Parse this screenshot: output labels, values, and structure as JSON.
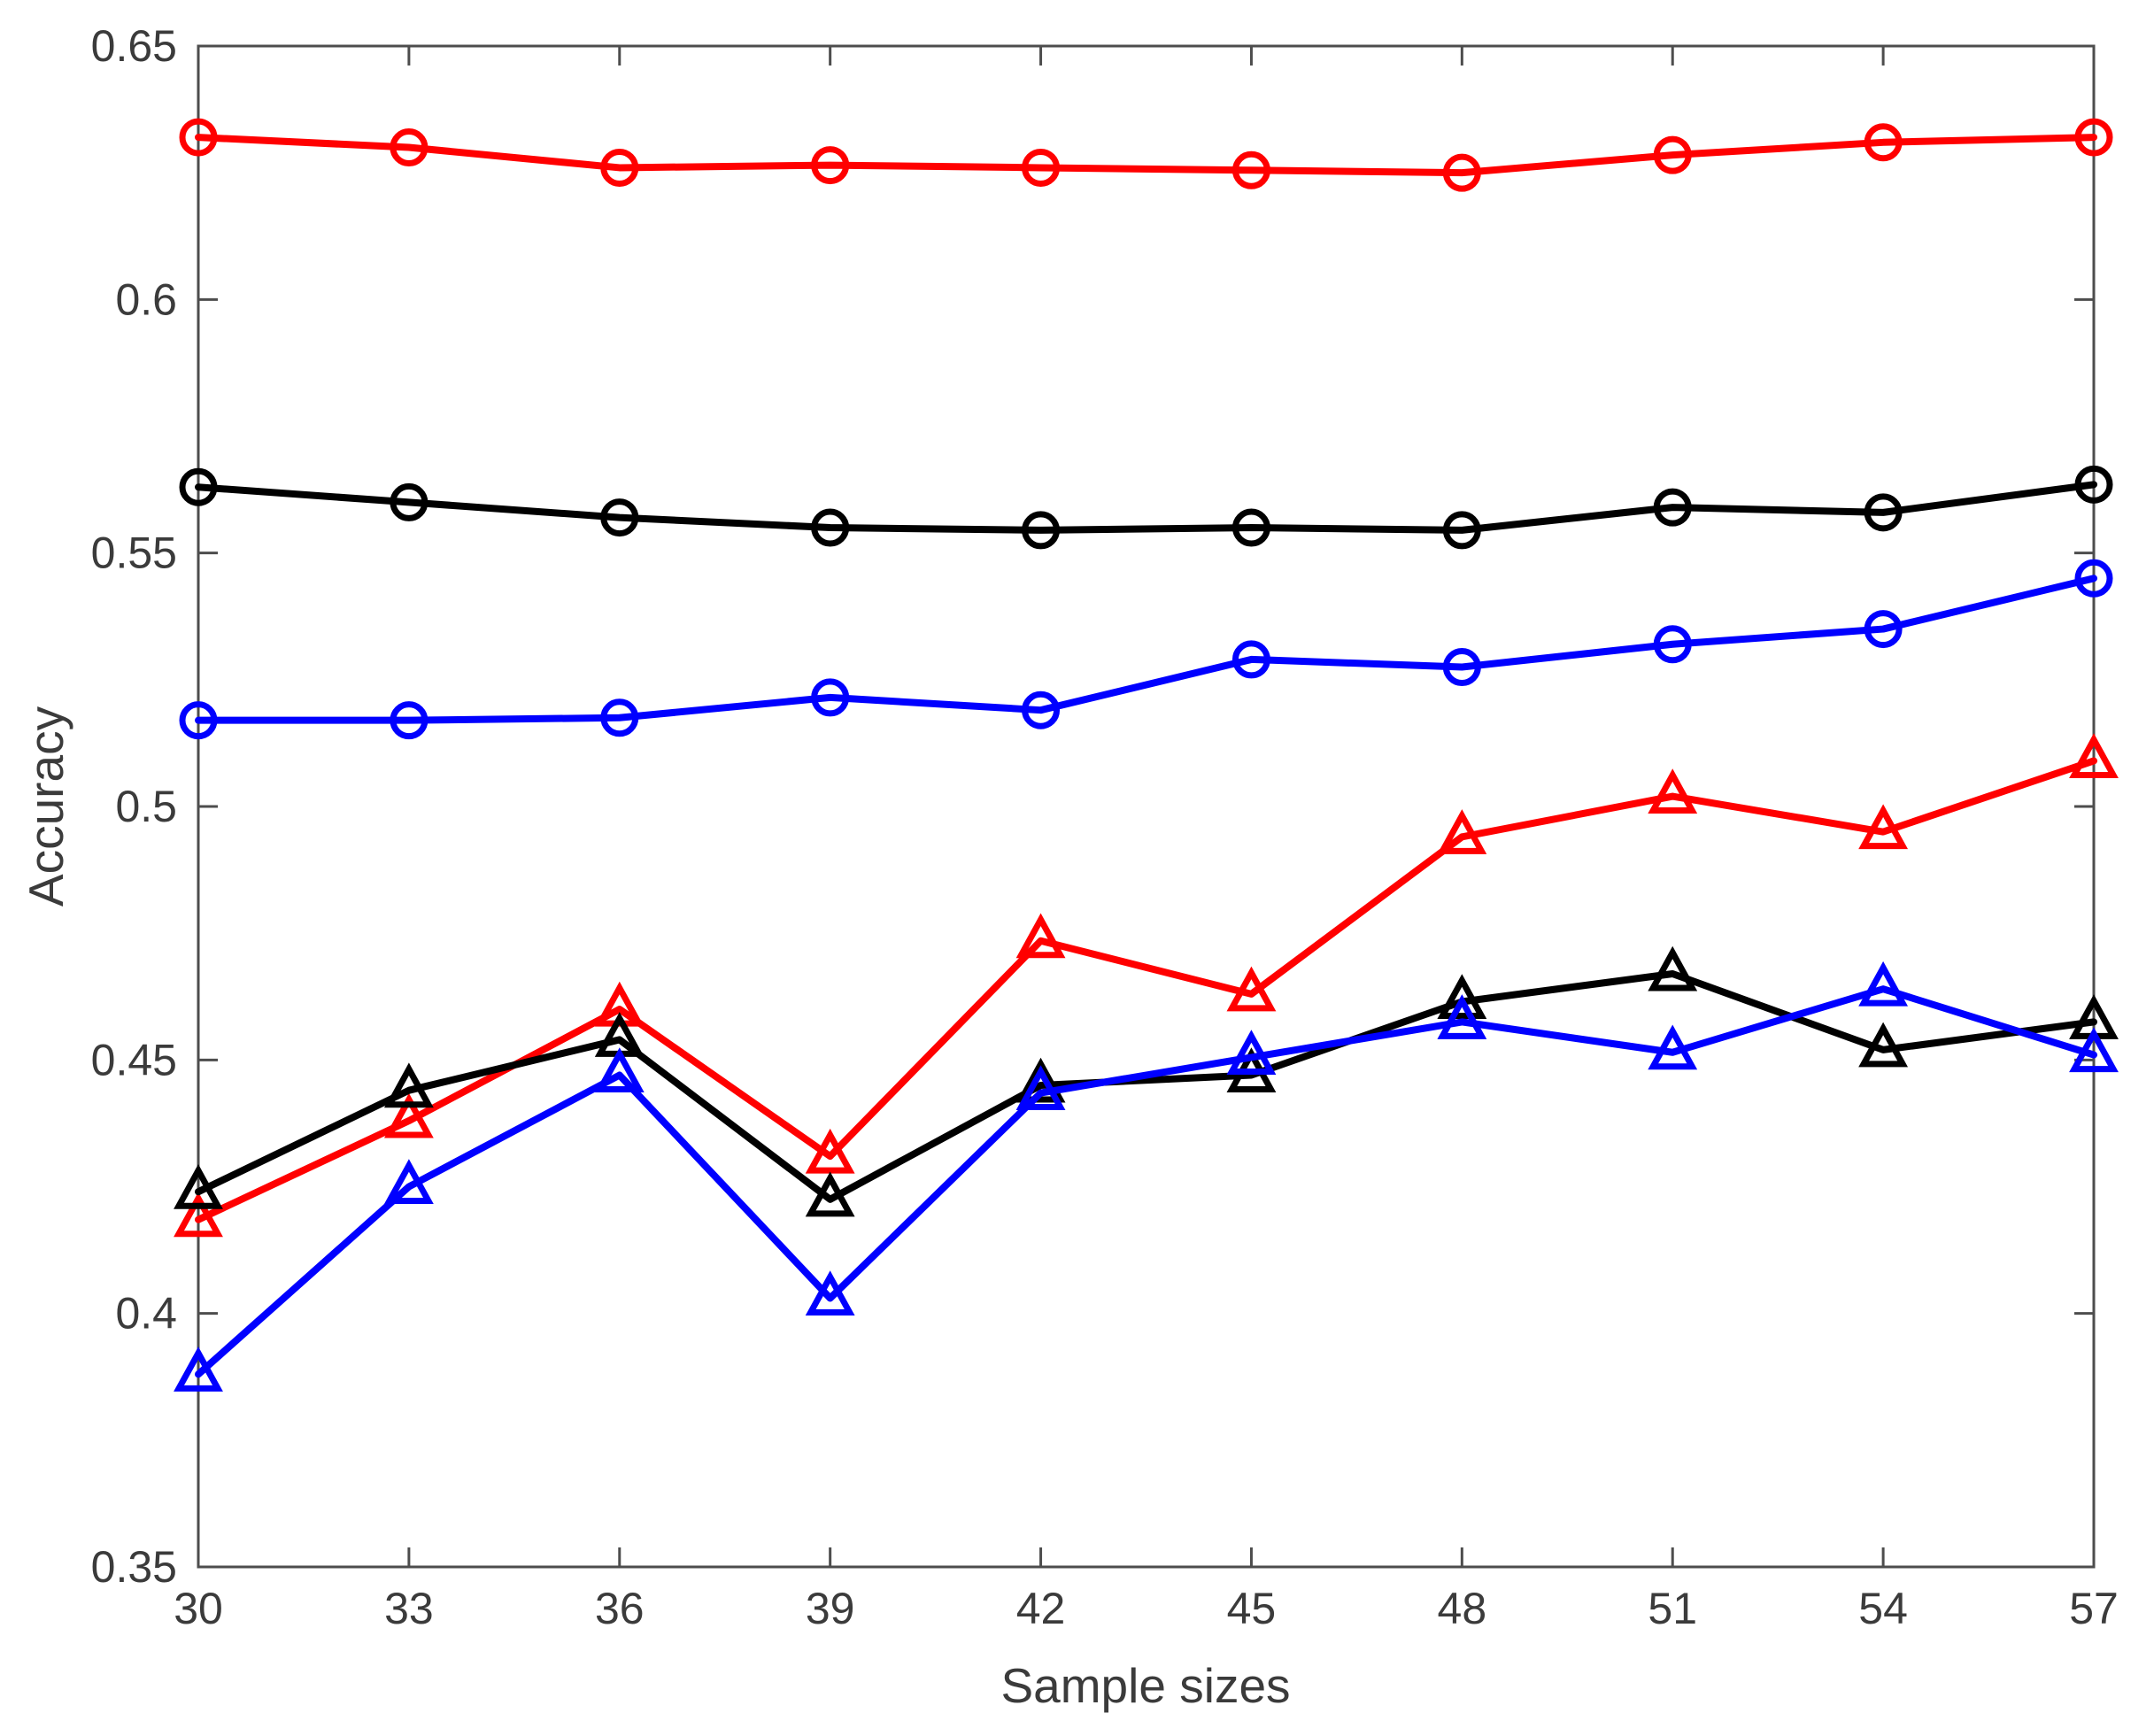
{
  "chart_data": {
    "type": "line",
    "title": "",
    "xlabel": "Sample sizes",
    "ylabel": "Accuracy",
    "grid": false,
    "legend": "none",
    "axis_color": "#4d4d4d",
    "text_color": "#3b3b3b",
    "xlim": [
      30,
      57
    ],
    "ylim": [
      0.35,
      0.65
    ],
    "x": [
      30,
      33,
      36,
      39,
      42,
      45,
      48,
      51,
      54,
      57
    ],
    "xtick_labels": [
      "30",
      "33",
      "36",
      "39",
      "42",
      "45",
      "48",
      "51",
      "54",
      "57"
    ],
    "yticks": [
      0.35,
      0.4,
      0.45,
      0.5,
      0.55,
      0.6,
      0.65
    ],
    "ytick_labels": [
      "0.35",
      "0.4",
      "0.45",
      "0.5",
      "0.55",
      "0.6",
      "0.65"
    ],
    "series": [
      {
        "name": "red-circle",
        "color": "#ff0000",
        "marker": "circle",
        "values": [
          0.632,
          0.63,
          0.626,
          0.6265,
          0.626,
          0.6255,
          0.625,
          0.6285,
          0.631,
          0.632
        ]
      },
      {
        "name": "black-circle",
        "color": "#000000",
        "marker": "circle",
        "values": [
          0.563,
          0.56,
          0.557,
          0.555,
          0.5545,
          0.555,
          0.5545,
          0.559,
          0.558,
          0.5635
        ]
      },
      {
        "name": "blue-circle",
        "color": "#0000ff",
        "marker": "circle",
        "values": [
          0.517,
          0.517,
          0.5175,
          0.5215,
          0.519,
          0.529,
          0.5275,
          0.532,
          0.535,
          0.545
        ]
      },
      {
        "name": "red-triangle",
        "color": "#ff0000",
        "marker": "triangle",
        "values": [
          0.4185,
          0.438,
          0.46,
          0.431,
          0.4735,
          0.463,
          0.494,
          0.502,
          0.495,
          0.509
        ]
      },
      {
        "name": "black-triangle",
        "color": "#000000",
        "marker": "triangle",
        "values": [
          0.424,
          0.444,
          0.454,
          0.4225,
          0.445,
          0.447,
          0.4615,
          0.467,
          0.452,
          0.4575
        ]
      },
      {
        "name": "blue-triangle",
        "color": "#0000ff",
        "marker": "triangle",
        "values": [
          0.388,
          0.425,
          0.447,
          0.403,
          0.4435,
          0.4505,
          0.4575,
          0.4515,
          0.464,
          0.451
        ]
      }
    ]
  }
}
